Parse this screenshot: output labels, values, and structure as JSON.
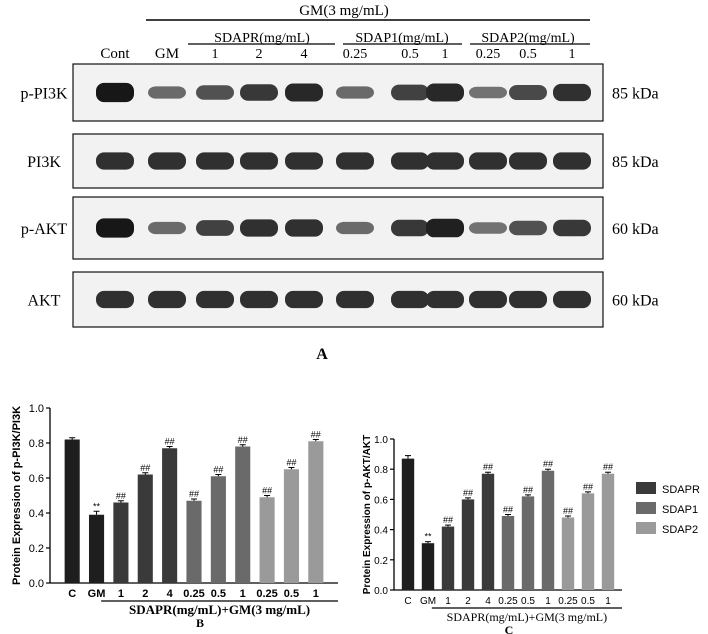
{
  "blot": {
    "group_label": "GM(3 mg/mL)",
    "col_cont": "Cont",
    "col_gm": "GM",
    "groups": [
      {
        "name": "SDAPR(mg/mL)",
        "doses": [
          "1",
          "2",
          "4"
        ]
      },
      {
        "name": "SDAP1(mg/mL)",
        "doses": [
          "0.25",
          "0.5",
          "1"
        ]
      },
      {
        "name": "SDAP2(mg/mL)",
        "doses": [
          "0.25",
          "0.5",
          "1"
        ]
      }
    ],
    "rows": [
      {
        "label": "p-PI3K",
        "kda": "85 kDa",
        "intensity": [
          0.95,
          0.45,
          0.6,
          0.75,
          0.85,
          0.45,
          0.7,
          0.85,
          0.4,
          0.65,
          0.8
        ]
      },
      {
        "label": "PI3K",
        "kda": "85 kDa",
        "intensity": [
          0.8,
          0.8,
          0.8,
          0.8,
          0.8,
          0.8,
          0.8,
          0.8,
          0.8,
          0.8,
          0.8
        ]
      },
      {
        "label": "p-AKT",
        "kda": "60 kDa",
        "intensity": [
          0.95,
          0.45,
          0.7,
          0.8,
          0.8,
          0.45,
          0.75,
          0.9,
          0.4,
          0.6,
          0.75
        ]
      },
      {
        "label": "AKT",
        "kda": "60 kDa",
        "intensity": [
          0.8,
          0.8,
          0.8,
          0.8,
          0.8,
          0.8,
          0.8,
          0.8,
          0.8,
          0.8,
          0.8
        ]
      }
    ],
    "panel_letter": "A"
  },
  "colors": {
    "control": "#1e1e1e",
    "sdapr": "#3a3a3a",
    "sdap1": "#6a6a6a",
    "sdap2": "#9a9a9a"
  },
  "chart_data": [
    {
      "type": "bar",
      "panel_letter": "B",
      "ylabel": "Protein Expression of p-PI3K/PI3K",
      "xlabel": "SDAPR(mg/mL)+GM(3 mg/mL)",
      "ylim": [
        0,
        1.0
      ],
      "yticks": [
        "0.0",
        "0.2",
        "0.4",
        "0.6",
        "0.8",
        "1.0"
      ],
      "categories": [
        "C",
        "GM",
        "1",
        "2",
        "4",
        "0.25",
        "0.5",
        "1",
        "0.25",
        "0.5",
        "1"
      ],
      "values": [
        0.82,
        0.39,
        0.46,
        0.62,
        0.77,
        0.47,
        0.61,
        0.78,
        0.49,
        0.65,
        0.81
      ],
      "errors": [
        0.01,
        0.02,
        0.01,
        0.01,
        0.01,
        0.01,
        0.01,
        0.01,
        0.01,
        0.01,
        0.01
      ],
      "groups": [
        "control",
        "control",
        "sdapr",
        "sdapr",
        "sdapr",
        "sdap1",
        "sdap1",
        "sdap1",
        "sdap2",
        "sdap2",
        "sdap2"
      ],
      "annotations": [
        "",
        "**",
        "##",
        "##",
        "##",
        "##",
        "##",
        "##",
        "##",
        "##",
        "##"
      ]
    },
    {
      "type": "bar",
      "panel_letter": "C",
      "ylabel": "Protein Expression of p-AKT/AKT",
      "xlabel": "SDAPR(mg/mL)+GM(3 mg/mL)",
      "ylim": [
        0,
        1.0
      ],
      "yticks": [
        "0.0",
        "0.2",
        "0.4",
        "0.6",
        "0.8",
        "1.0"
      ],
      "categories": [
        "C",
        "GM",
        "1",
        "2",
        "4",
        "0.25",
        "0.5",
        "1",
        "0.25",
        "0.5",
        "1"
      ],
      "values": [
        0.87,
        0.31,
        0.42,
        0.6,
        0.77,
        0.49,
        0.62,
        0.79,
        0.48,
        0.64,
        0.77
      ],
      "errors": [
        0.02,
        0.01,
        0.01,
        0.01,
        0.01,
        0.01,
        0.01,
        0.01,
        0.01,
        0.01,
        0.01
      ],
      "groups": [
        "control",
        "control",
        "sdapr",
        "sdapr",
        "sdapr",
        "sdap1",
        "sdap1",
        "sdap1",
        "sdap2",
        "sdap2",
        "sdap2"
      ],
      "annotations": [
        "",
        "**",
        "##",
        "##",
        "##",
        "##",
        "##",
        "##",
        "##",
        "##",
        "##"
      ],
      "legend": [
        {
          "label": "SDAPR",
          "group": "sdapr"
        },
        {
          "label": "SDAP1",
          "group": "sdap1"
        },
        {
          "label": "SDAP2",
          "group": "sdap2"
        }
      ]
    }
  ]
}
